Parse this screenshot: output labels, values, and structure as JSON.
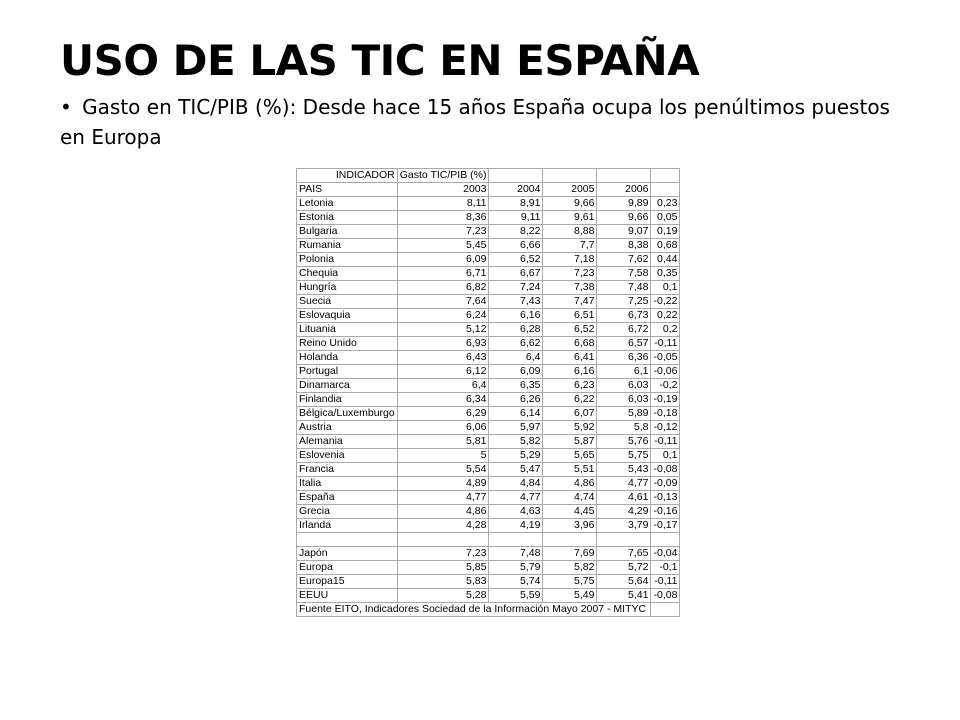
{
  "slide": {
    "title": "USO DE LAS TIC EN ESPAÑA",
    "bullet_mark": "•",
    "bullet_text": "Gasto en TIC/PIB (%): Desde hace 15 años España ocupa los penúltimos puestos en Europa"
  },
  "table": {
    "indicator_label": "INDICADOR",
    "indicator_value": "Gasto TIC/PIB (%)",
    "country_header": "PAIS",
    "years": [
      "2003",
      "2004",
      "2005",
      "2006"
    ],
    "rows": [
      {
        "country": "Letonia",
        "values": [
          "8,11",
          "8,91",
          "9,66",
          "9,89",
          "0,23"
        ]
      },
      {
        "country": "Estonia",
        "values": [
          "8,36",
          "9,11",
          "9,61",
          "9,66",
          "0,05"
        ]
      },
      {
        "country": "Bulgaria",
        "values": [
          "7,23",
          "8,22",
          "8,88",
          "9,07",
          "0,19"
        ]
      },
      {
        "country": "Rumania",
        "values": [
          "5,45",
          "6,66",
          "7,7",
          "8,38",
          "0,68"
        ]
      },
      {
        "country": "Polonia",
        "values": [
          "6,09",
          "6,52",
          "7,18",
          "7,62",
          "0,44"
        ]
      },
      {
        "country": "Chequia",
        "values": [
          "6,71",
          "6,67",
          "7,23",
          "7,58",
          "0,35"
        ]
      },
      {
        "country": "Hungría",
        "values": [
          "6,82",
          "7,24",
          "7,38",
          "7,48",
          "0,1"
        ]
      },
      {
        "country": "Suecia",
        "values": [
          "7,64",
          "7,43",
          "7,47",
          "7,25",
          "-0,22"
        ]
      },
      {
        "country": "Eslovaquia",
        "values": [
          "6,24",
          "6,16",
          "6,51",
          "6,73",
          "0,22"
        ]
      },
      {
        "country": "Lituania",
        "values": [
          "5,12",
          "6,28",
          "6,52",
          "6,72",
          "0,2"
        ]
      },
      {
        "country": "Reino Unido",
        "values": [
          "6,93",
          "6,62",
          "6,68",
          "6,57",
          "-0,11"
        ]
      },
      {
        "country": "Holanda",
        "values": [
          "6,43",
          "6,4",
          "6,41",
          "6,36",
          "-0,05"
        ]
      },
      {
        "country": "Portugal",
        "values": [
          "6,12",
          "6,09",
          "6,16",
          "6,1",
          "-0,06"
        ]
      },
      {
        "country": "Dinamarca",
        "values": [
          "6,4",
          "6,35",
          "6,23",
          "6,03",
          "-0,2"
        ]
      },
      {
        "country": "Finlandia",
        "values": [
          "6,34",
          "6,26",
          "6,22",
          "6,03",
          "-0,19"
        ]
      },
      {
        "country": "Bélgica/Luxemburgo",
        "values": [
          "6,29",
          "6,14",
          "6,07",
          "5,89",
          "-0,18"
        ]
      },
      {
        "country": "Austria",
        "values": [
          "6,06",
          "5,97",
          "5,92",
          "5,8",
          "-0,12"
        ]
      },
      {
        "country": "Alemania",
        "values": [
          "5,81",
          "5,82",
          "5,87",
          "5,76",
          "-0,11"
        ]
      },
      {
        "country": "Eslovenia",
        "values": [
          "5",
          "5,29",
          "5,65",
          "5,75",
          "0,1"
        ]
      },
      {
        "country": "Francia",
        "values": [
          "5,54",
          "5,47",
          "5,51",
          "5,43",
          "-0,08"
        ]
      },
      {
        "country": "Italia",
        "values": [
          "4,89",
          "4,84",
          "4,86",
          "4,77",
          "-0,09"
        ]
      },
      {
        "country": "España",
        "values": [
          "4,77",
          "4,77",
          "4,74",
          "4,61",
          "-0,13"
        ]
      },
      {
        "country": "Grecia",
        "values": [
          "4,86",
          "4,63",
          "4,45",
          "4,29",
          "-0,16"
        ]
      },
      {
        "country": "Irlanda",
        "values": [
          "4,28",
          "4,19",
          "3,96",
          "3,79",
          "-0,17"
        ]
      },
      {
        "country": "",
        "values": [
          "",
          "",
          "",
          "",
          ""
        ]
      },
      {
        "country": "Japón",
        "values": [
          "7,23",
          "7,48",
          "7,69",
          "7,65",
          "-0,04"
        ]
      },
      {
        "country": "Europa",
        "values": [
          "5,85",
          "5,79",
          "5,82",
          "5,72",
          "-0,1"
        ]
      },
      {
        "country": "Europa15",
        "values": [
          "5,83",
          "5,74",
          "5,75",
          "5,64",
          "-0,11"
        ]
      },
      {
        "country": "EEUU",
        "values": [
          "5,28",
          "5,59",
          "5,49",
          "5,41",
          "-0,08"
        ]
      }
    ],
    "source": "Fuente EITO, Indicadores Sociedad de la Información Mayo 2007 - MITYC"
  }
}
